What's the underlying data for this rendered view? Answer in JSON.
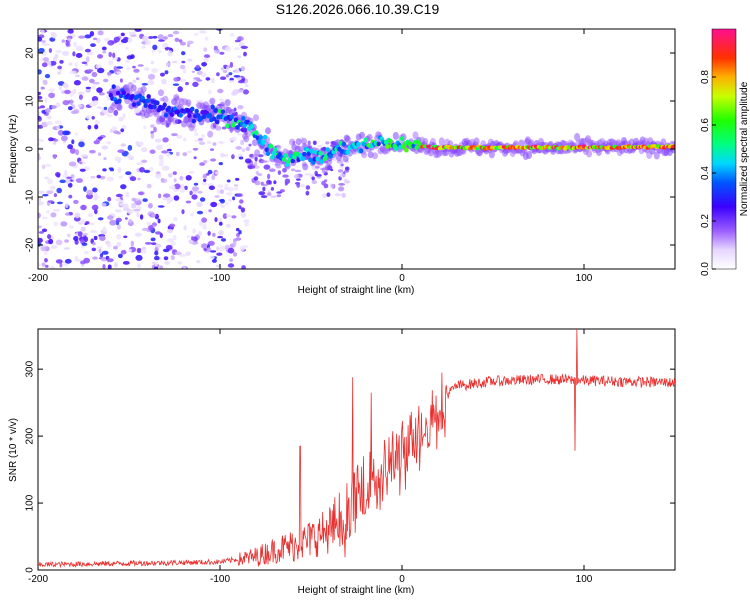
{
  "title": "S126.2026.066.10.39.C19",
  "chart_data": [
    {
      "type": "heatmap",
      "name": "spectrogram",
      "xlabel": "Height of straight line (km)",
      "ylabel": "Frequency (Hz)",
      "xlim": [
        -200,
        150
      ],
      "ylim": [
        -25,
        25
      ],
      "xticks": [
        -200,
        -100,
        0,
        100
      ],
      "yticks": [
        -20,
        -10,
        0,
        10,
        20
      ],
      "xtick_labels": [
        "-200",
        "-100",
        "0",
        "100"
      ],
      "ytick_labels": [
        "-20",
        "-10",
        "0",
        "10",
        "20"
      ],
      "ridge": [
        {
          "x": -150,
          "y": 11
        },
        {
          "x": -130,
          "y": 8
        },
        {
          "x": -110,
          "y": 7
        },
        {
          "x": -95,
          "y": 6.5
        },
        {
          "x": -85,
          "y": 5
        },
        {
          "x": -75,
          "y": 1
        },
        {
          "x": -65,
          "y": -2
        },
        {
          "x": -55,
          "y": -1
        },
        {
          "x": -45,
          "y": -2
        },
        {
          "x": -35,
          "y": 0
        },
        {
          "x": -20,
          "y": 0.5
        },
        {
          "x": -15,
          "y": 1.5
        },
        {
          "x": 0,
          "y": 1
        },
        {
          "x": 20,
          "y": 0.3
        },
        {
          "x": 100,
          "y": 0.3
        },
        {
          "x": 150,
          "y": 0.5
        }
      ],
      "colorbar": {
        "label": "Normalized spectral amplitude",
        "range": [
          0,
          1
        ],
        "ticks": [
          0.0,
          0.2,
          0.4,
          0.6,
          0.8
        ],
        "tick_labels": [
          "0.0",
          "0.2",
          "0.4",
          "0.6",
          "0.8"
        ]
      }
    },
    {
      "type": "line",
      "name": "snr",
      "xlabel": "Height of straight line (km)",
      "ylabel": "SNR (10 * v/v)",
      "xlim": [
        -200,
        150
      ],
      "ylim": [
        0,
        360
      ],
      "xticks": [
        -200,
        -100,
        0,
        100
      ],
      "yticks": [
        0,
        100,
        200,
        300
      ],
      "xtick_labels": [
        "-200",
        "-100",
        "0",
        "100"
      ],
      "ytick_labels": [
        "0",
        "100",
        "200",
        "300"
      ],
      "color": "#e8302f",
      "envelope": [
        {
          "x": -200,
          "y": 8
        },
        {
          "x": -150,
          "y": 10
        },
        {
          "x": -100,
          "y": 12
        },
        {
          "x": -80,
          "y": 20
        },
        {
          "x": -70,
          "y": 30
        },
        {
          "x": -55,
          "y": 40
        },
        {
          "x": -40,
          "y": 60
        },
        {
          "x": -30,
          "y": 90
        },
        {
          "x": -20,
          "y": 130
        },
        {
          "x": -10,
          "y": 160
        },
        {
          "x": 0,
          "y": 180
        },
        {
          "x": 10,
          "y": 215
        },
        {
          "x": 20,
          "y": 250
        },
        {
          "x": 30,
          "y": 275
        },
        {
          "x": 50,
          "y": 282
        },
        {
          "x": 80,
          "y": 285
        },
        {
          "x": 100,
          "y": 283
        },
        {
          "x": 150,
          "y": 280
        }
      ],
      "spikes": [
        {
          "x": -56,
          "y": 185
        },
        {
          "x": -27,
          "y": 288
        },
        {
          "x": -17,
          "y": 265
        },
        {
          "x": 96,
          "y": 360
        },
        {
          "x": 95,
          "y": 178
        }
      ]
    }
  ]
}
